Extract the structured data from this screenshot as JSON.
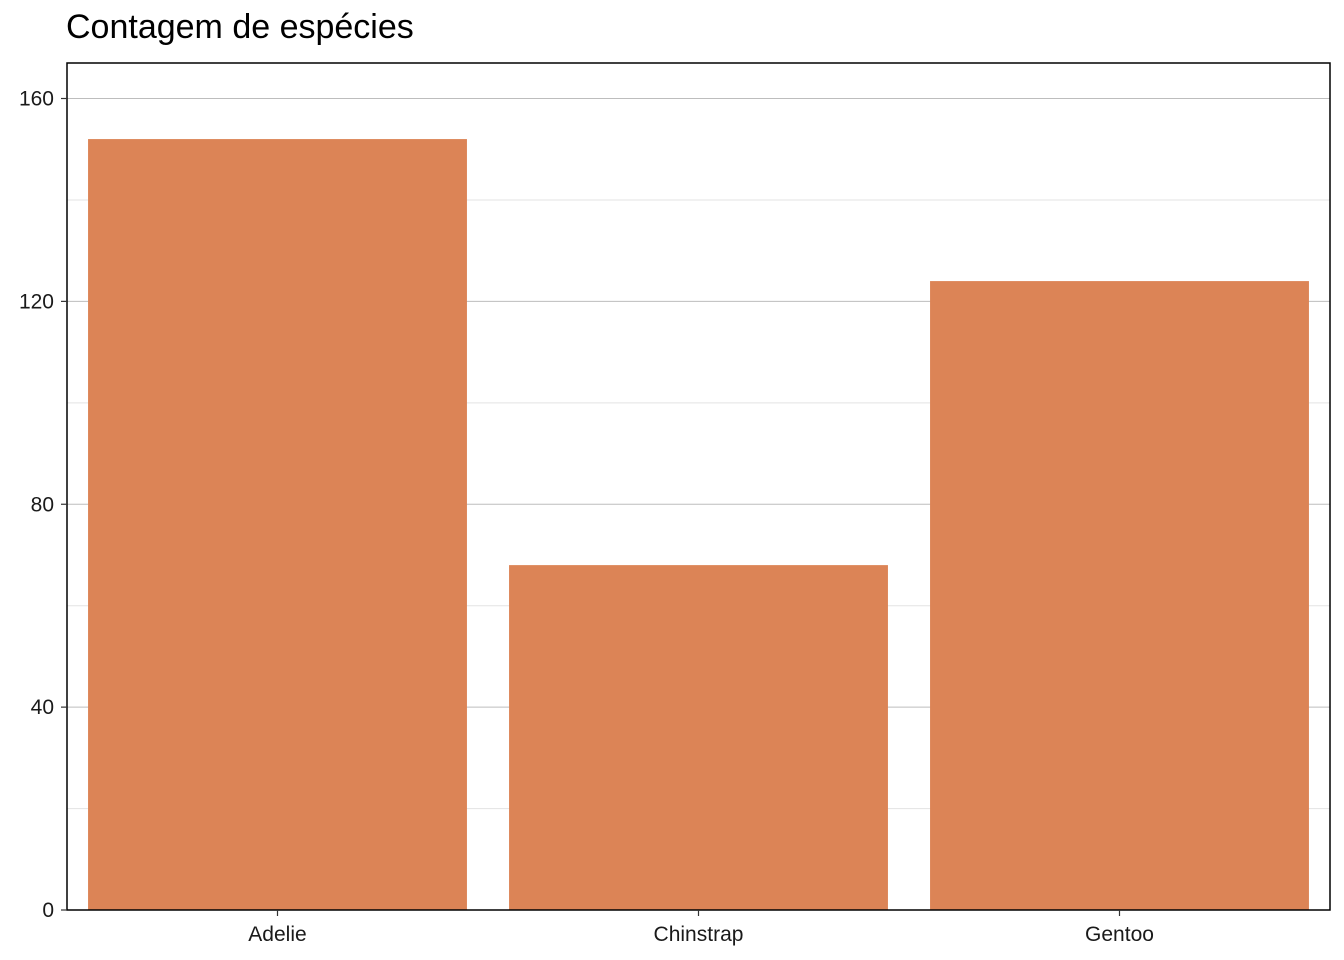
{
  "chart_data": {
    "type": "bar",
    "title": "Contagem de espécies",
    "categories": [
      "Adelie",
      "Chinstrap",
      "Gentoo"
    ],
    "values": [
      152,
      68,
      124
    ],
    "xlabel": "",
    "ylabel": "",
    "ylim": [
      0,
      167
    ],
    "yticks": [
      0,
      40,
      80,
      120,
      160
    ],
    "y_minor_ticks": [
      20,
      60,
      100,
      140
    ],
    "grid": true,
    "bar_color": "#DC8456"
  }
}
